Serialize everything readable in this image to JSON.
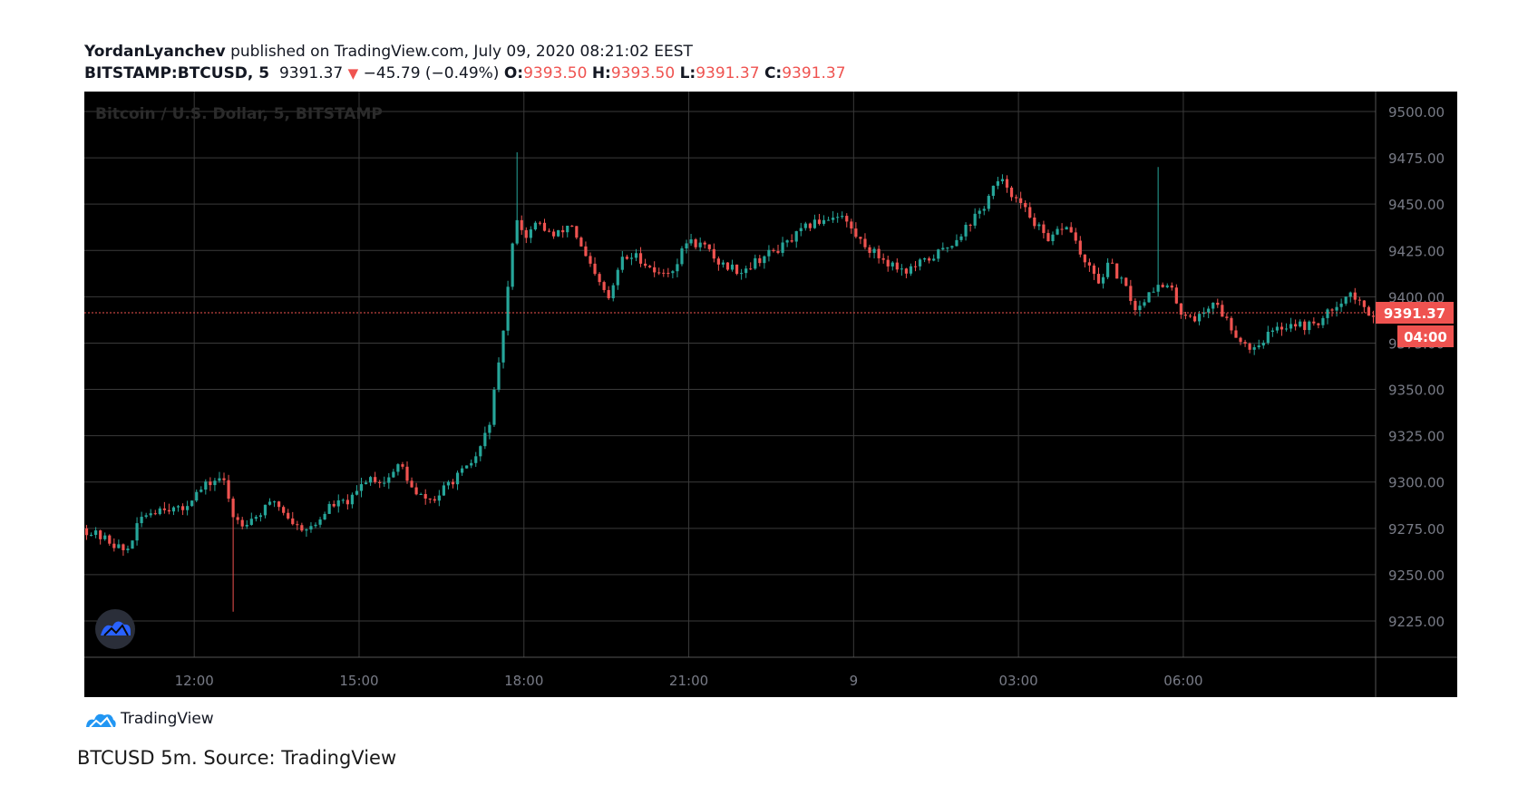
{
  "header": {
    "author": "YordanLyanchev",
    "published_text": "published on TradingView.com, July 09, 2020 08:21:02 EEST",
    "symbol": "BITSTAMP:BTCUSD, 5",
    "last": "9391.37",
    "change": "−45.79 (−0.49%)",
    "o_label": "O:",
    "o_value": "9393.50",
    "h_label": "H:",
    "h_value": "9393.50",
    "l_label": "L:",
    "l_value": "9391.37",
    "c_label": "C:",
    "c_value": "9391.37"
  },
  "watermark": "Bitcoin / U.S. Dollar, 5, BITSTAMP",
  "price_badge": "9391.37",
  "countdown_badge": "04:00",
  "footer": {
    "brand": "TradingView",
    "caption": "BTCUSD 5m. Source: TradingView"
  },
  "colors": {
    "up": "#26a69a",
    "down": "#ef5350",
    "background": "#000000",
    "grid": "#3a3a3a",
    "axis_text": "#787b86"
  },
  "chart_data": {
    "type": "candlestick",
    "title": "Bitcoin / U.S. Dollar, 5, BITSTAMP",
    "y_ticks": [
      "9500.00",
      "9475.00",
      "9450.00",
      "9425.00",
      "9400.00",
      "9375.00",
      "9350.00",
      "9325.00",
      "9300.00",
      "9275.00",
      "9250.00",
      "9225.00"
    ],
    "x_ticks": [
      "12:00",
      "15:00",
      "18:00",
      "21:00",
      "9",
      "03:00",
      "06:00"
    ],
    "ylim": [
      9214,
      9510
    ],
    "x_tick_hours": [
      12,
      15,
      18,
      21,
      24,
      27,
      30
    ],
    "x_range_hours": [
      10.0,
      33.5
    ],
    "last_price": 9391.37,
    "close_path": [
      [
        10.0,
        9275
      ],
      [
        10.5,
        9268
      ],
      [
        10.8,
        9262
      ],
      [
        11.1,
        9282
      ],
      [
        11.5,
        9287
      ],
      [
        11.8,
        9284
      ],
      [
        12.0,
        9292
      ],
      [
        12.3,
        9299
      ],
      [
        12.55,
        9303
      ],
      [
        12.75,
        9282
      ],
      [
        12.9,
        9278
      ],
      [
        13.2,
        9282
      ],
      [
        13.5,
        9290
      ],
      [
        13.9,
        9276
      ],
      [
        14.2,
        9275
      ],
      [
        14.5,
        9287
      ],
      [
        14.9,
        9290
      ],
      [
        15.2,
        9303
      ],
      [
        15.5,
        9300
      ],
      [
        15.8,
        9310
      ],
      [
        16.05,
        9293
      ],
      [
        16.4,
        9290
      ],
      [
        16.7,
        9300
      ],
      [
        17.0,
        9307
      ],
      [
        17.2,
        9315
      ],
      [
        17.4,
        9330
      ],
      [
        17.6,
        9365
      ],
      [
        17.8,
        9418
      ],
      [
        17.9,
        9445
      ],
      [
        18.05,
        9432
      ],
      [
        18.3,
        9440
      ],
      [
        18.6,
        9432
      ],
      [
        18.9,
        9440
      ],
      [
        19.1,
        9425
      ],
      [
        19.35,
        9410
      ],
      [
        19.6,
        9398
      ],
      [
        19.8,
        9420
      ],
      [
        20.1,
        9422
      ],
      [
        20.5,
        9412
      ],
      [
        20.8,
        9416
      ],
      [
        21.0,
        9430
      ],
      [
        21.3,
        9428
      ],
      [
        21.6,
        9418
      ],
      [
        22.0,
        9414
      ],
      [
        22.3,
        9420
      ],
      [
        22.8,
        9428
      ],
      [
        23.2,
        9438
      ],
      [
        23.5,
        9442
      ],
      [
        23.8,
        9445
      ],
      [
        24.1,
        9432
      ],
      [
        24.4,
        9424
      ],
      [
        24.7,
        9418
      ],
      [
        25.0,
        9414
      ],
      [
        25.4,
        9420
      ],
      [
        25.8,
        9428
      ],
      [
        26.1,
        9438
      ],
      [
        26.4,
        9448
      ],
      [
        26.6,
        9460
      ],
      [
        26.8,
        9462
      ],
      [
        27.0,
        9452
      ],
      [
        27.3,
        9442
      ],
      [
        27.6,
        9428
      ],
      [
        27.8,
        9438
      ],
      [
        28.0,
        9436
      ],
      [
        28.2,
        9420
      ],
      [
        28.5,
        9408
      ],
      [
        28.7,
        9418
      ],
      [
        29.0,
        9404
      ],
      [
        29.2,
        9392
      ],
      [
        29.45,
        9405
      ],
      [
        29.8,
        9405
      ],
      [
        30.0,
        9392
      ],
      [
        30.3,
        9388
      ],
      [
        30.6,
        9398
      ],
      [
        30.9,
        9384
      ],
      [
        31.1,
        9376
      ],
      [
        31.3,
        9372
      ],
      [
        31.6,
        9380
      ],
      [
        32.0,
        9386
      ],
      [
        32.3,
        9384
      ],
      [
        32.6,
        9388
      ],
      [
        32.8,
        9396
      ],
      [
        33.1,
        9402
      ],
      [
        33.35,
        9392
      ],
      [
        33.5,
        9391.37
      ]
    ],
    "wick_extremes": [
      {
        "x_hour": 12.65,
        "low": 9230
      },
      {
        "x_hour": 17.8,
        "high": 9478
      },
      {
        "x_hour": 29.5,
        "high": 9470
      }
    ]
  }
}
